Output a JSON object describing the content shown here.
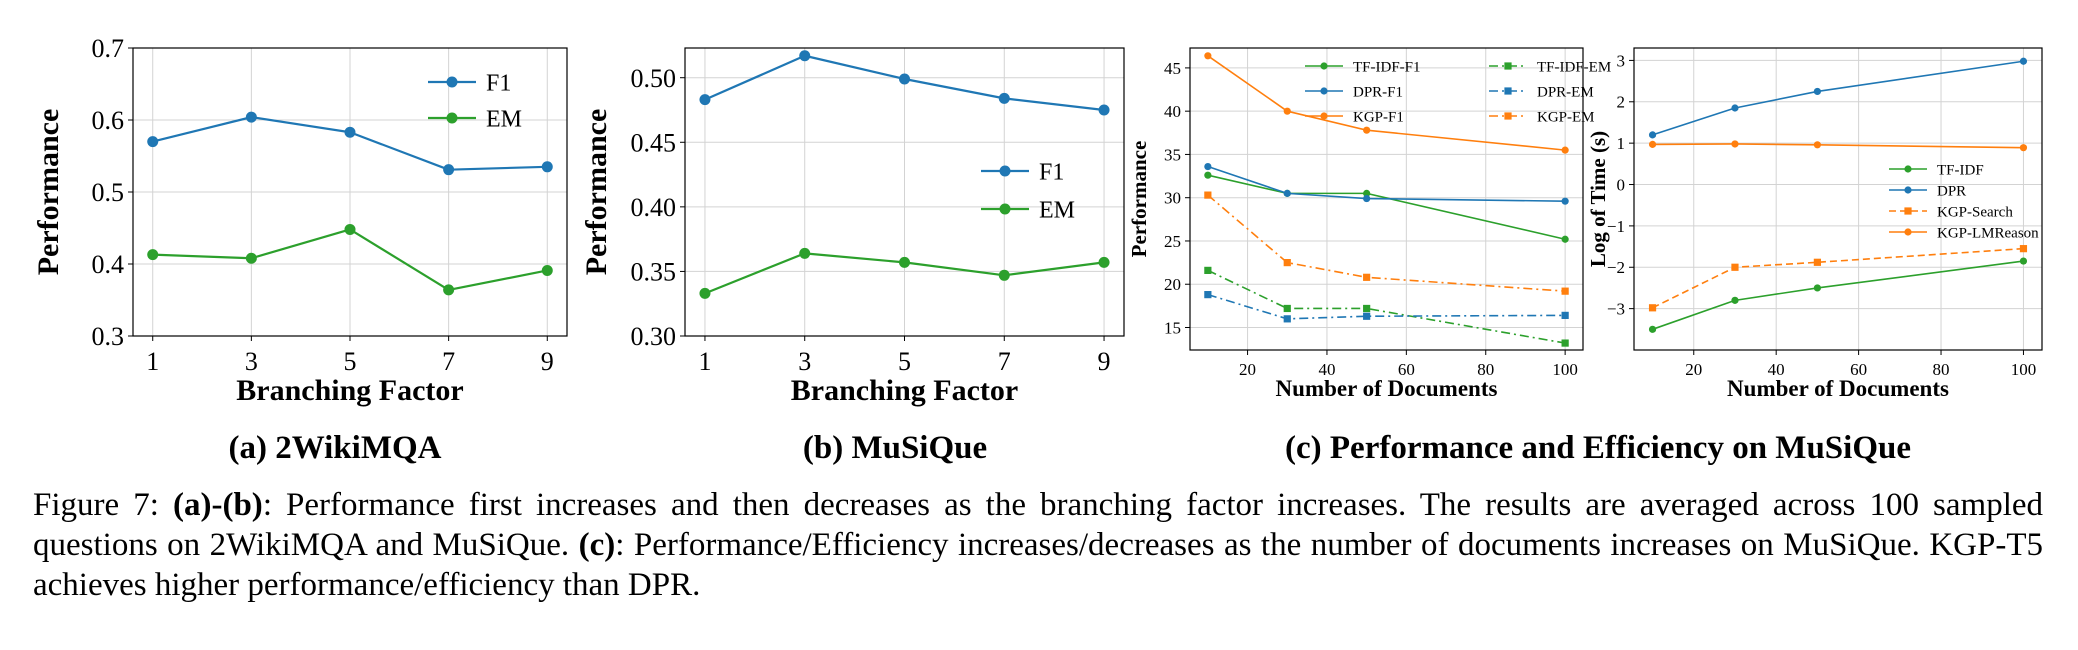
{
  "chart_data": [
    {
      "id": "a",
      "type": "line",
      "xlabel": "Branching Factor",
      "ylabel": "Performance",
      "x": [
        1,
        3,
        5,
        7,
        9
      ],
      "xticks": [
        "1",
        "3",
        "5",
        "7",
        "9"
      ],
      "xlim": [
        0.6,
        9.4
      ],
      "yticks": [
        "0.3",
        "0.4",
        "0.5",
        "0.6",
        "0.7"
      ],
      "ylim": [
        0.3,
        0.7
      ],
      "grid": true,
      "legend_position": "top-right",
      "series": [
        {
          "name": "F1",
          "color": "#1f77b4",
          "style": "solid",
          "values": [
            0.57,
            0.604,
            0.583,
            0.531,
            0.535
          ]
        },
        {
          "name": "EM",
          "color": "#2ca02c",
          "style": "solid",
          "values": [
            0.413,
            0.408,
            0.448,
            0.364,
            0.391
          ]
        }
      ]
    },
    {
      "id": "b",
      "type": "line",
      "xlabel": "Branching Factor",
      "ylabel": "Performance",
      "x": [
        1,
        3,
        5,
        7,
        9
      ],
      "xticks": [
        "1",
        "3",
        "5",
        "7",
        "9"
      ],
      "xlim": [
        0.6,
        9.4
      ],
      "yticks": [
        "0.30",
        "0.35",
        "0.40",
        "0.45",
        "0.50"
      ],
      "ylim": [
        0.3,
        0.523
      ],
      "grid": true,
      "legend_position": "center-right",
      "series": [
        {
          "name": "F1",
          "color": "#1f77b4",
          "style": "solid",
          "values": [
            0.483,
            0.517,
            0.499,
            0.484,
            0.475
          ]
        },
        {
          "name": "EM",
          "color": "#2ca02c",
          "style": "solid",
          "values": [
            0.333,
            0.364,
            0.357,
            0.347,
            0.357
          ]
        }
      ]
    },
    {
      "id": "c1",
      "type": "line",
      "xlabel": "Number of Documents",
      "ylabel": "Performance",
      "x": [
        10,
        30,
        50,
        100
      ],
      "xticks": [
        "20",
        "40",
        "60",
        "80",
        "100"
      ],
      "xtick_values": [
        20,
        40,
        60,
        80,
        100
      ],
      "xlim": [
        5.5,
        104.5
      ],
      "yticks": [
        "15",
        "20",
        "25",
        "30",
        "35",
        "40",
        "45"
      ],
      "ylim": [
        12.4,
        47.3
      ],
      "grid": true,
      "legend_position": "top-right",
      "series": [
        {
          "name": "TF-IDF-F1",
          "color": "#2ca02c",
          "style": "solid",
          "values": [
            32.6,
            30.5,
            30.5,
            25.2
          ]
        },
        {
          "name": "DPR-F1",
          "color": "#1f77b4",
          "style": "solid",
          "values": [
            33.6,
            30.5,
            29.9,
            29.6
          ]
        },
        {
          "name": "KGP-F1",
          "color": "#ff7f0e",
          "style": "solid",
          "values": [
            46.4,
            40.0,
            37.8,
            35.5
          ]
        },
        {
          "name": "TF-IDF-EM",
          "color": "#2ca02c",
          "style": "dashdot",
          "values": [
            21.6,
            17.2,
            17.2,
            13.2
          ]
        },
        {
          "name": "DPR-EM",
          "color": "#1f77b4",
          "style": "dashdot",
          "values": [
            18.8,
            16.0,
            16.3,
            16.4
          ]
        },
        {
          "name": "KGP-EM",
          "color": "#ff7f0e",
          "style": "dashdot",
          "values": [
            30.3,
            22.5,
            20.8,
            19.2
          ]
        }
      ]
    },
    {
      "id": "c2",
      "type": "line",
      "xlabel": "Number of Documents",
      "ylabel": "Log of Time (s)",
      "x": [
        10,
        30,
        50,
        100
      ],
      "xticks": [
        "20",
        "40",
        "60",
        "80",
        "100"
      ],
      "xtick_values": [
        20,
        40,
        60,
        80,
        100
      ],
      "xlim": [
        5.5,
        104.5
      ],
      "yticks": [
        "−3",
        "−2",
        "−1",
        "0",
        "1",
        "2",
        "3"
      ],
      "ytick_values": [
        -3,
        -2,
        -1,
        0,
        1,
        2,
        3
      ],
      "ylim": [
        -4.0,
        3.3
      ],
      "grid": true,
      "legend_position": "center-right",
      "series": [
        {
          "name": "TF-IDF",
          "color": "#2ca02c",
          "style": "solid",
          "values": [
            -3.5,
            -2.8,
            -2.5,
            -1.85
          ]
        },
        {
          "name": "DPR",
          "color": "#1f77b4",
          "style": "solid",
          "values": [
            1.2,
            1.85,
            2.25,
            2.98
          ]
        },
        {
          "name": "KGP-Search",
          "color": "#ff7f0e",
          "style": "dashed",
          "values": [
            -2.98,
            -2.0,
            -1.88,
            -1.55
          ]
        },
        {
          "name": "KGP-LMReason",
          "color": "#ff7f0e",
          "style": "solid",
          "values": [
            0.97,
            0.98,
            0.96,
            0.89
          ]
        }
      ]
    }
  ],
  "subcaptions": {
    "a": "(a) 2WikiMQA",
    "b": "(b) MuSiQue",
    "c": "(c) Performance and Efficiency on MuSiQue"
  },
  "caption": {
    "label": "Figure 7: ",
    "ab_tag": "(a)-(b)",
    "ab_text": ": Performance first increases and then decreases as the branching factor increases. The results are averaged across 100 sampled questions on 2WikiMQA and MuSiQue. ",
    "c_tag": "(c)",
    "c_text": ": Performance/Efficiency increases/decreases as the number of documents increases on MuSiQue. KGP-T5 achieves higher performance/efficiency than DPR."
  }
}
